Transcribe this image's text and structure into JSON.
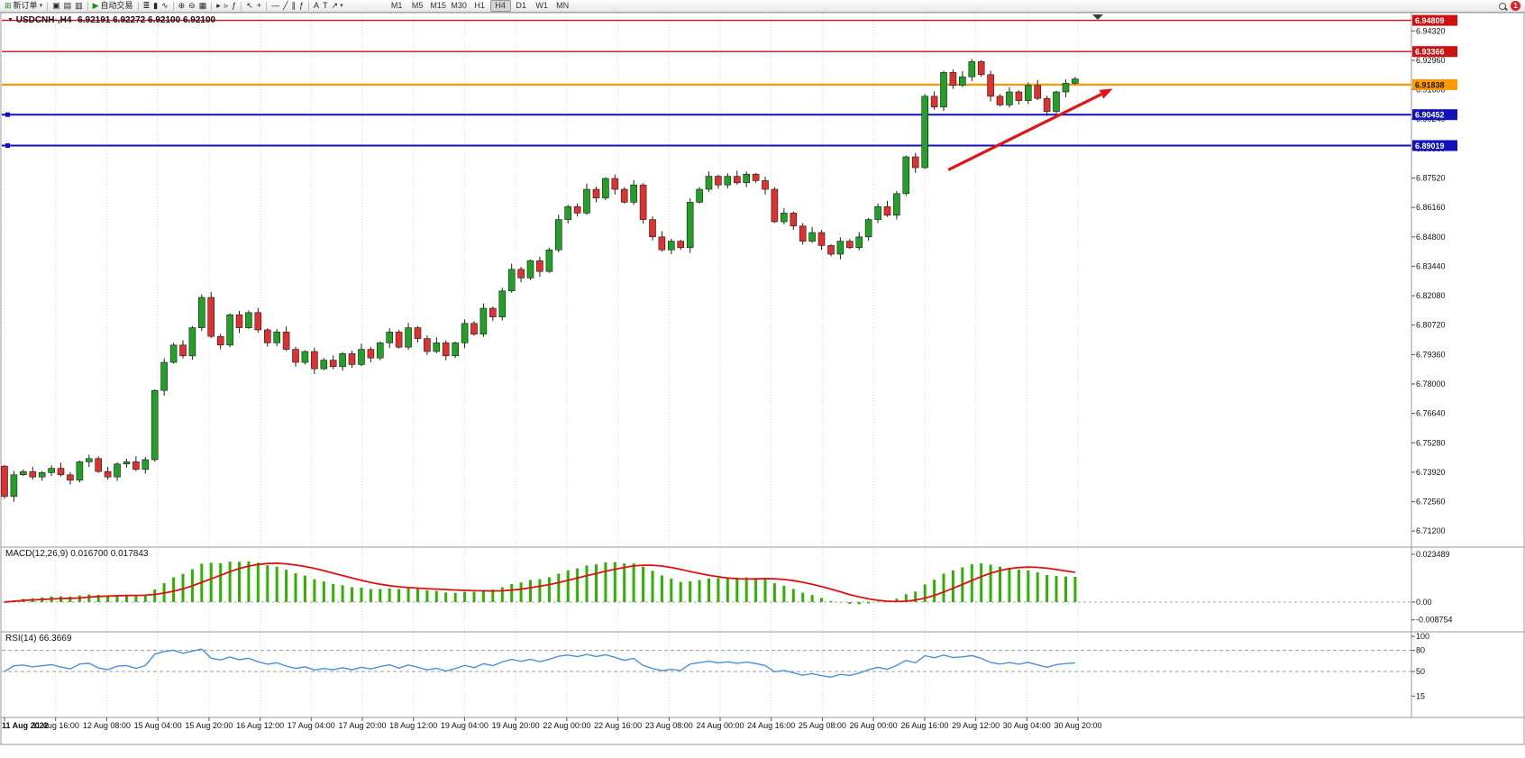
{
  "toolbar": {
    "groups": [
      {
        "items": [
          {
            "name": "new-order-button",
            "glyph": "⊞",
            "glyph_color": "#1a8a1a",
            "label": "新订单",
            "caret": true
          }
        ]
      },
      {
        "items": [
          {
            "name": "chart-window-button",
            "glyph": "▣"
          },
          {
            "name": "profile-button",
            "glyph": "▤"
          },
          {
            "name": "history-center-button",
            "glyph": "▥"
          }
        ]
      },
      {
        "items": [
          {
            "name": "autotrade-button",
            "glyph": "▶",
            "glyph_color": "#1a8a1a",
            "label": "自动交易"
          }
        ]
      },
      {
        "items": [
          {
            "name": "bar-chart-button",
            "glyph": "≣"
          },
          {
            "name": "candlestick-chart-button",
            "glyph": "▮"
          },
          {
            "name": "line-chart-button",
            "glyph": "∿"
          }
        ]
      },
      {
        "items": [
          {
            "name": "zoom-in-button",
            "glyph": "⊕"
          },
          {
            "name": "zoom-out-button",
            "glyph": "⊖"
          },
          {
            "name": "tile-windows-button",
            "glyph": "▦"
          }
        ]
      },
      {
        "items": [
          {
            "name": "auto-scroll-button",
            "glyph": "▸"
          },
          {
            "name": "chart-shift-button",
            "glyph": "▹"
          },
          {
            "name": "indicators-button",
            "glyph": "ƒ"
          }
        ]
      },
      {
        "items": [
          {
            "name": "cursor-button",
            "glyph": "↖"
          },
          {
            "name": "crosshair-button",
            "glyph": "+"
          }
        ]
      },
      {
        "items": [
          {
            "name": "horizontal-line-button",
            "glyph": "—"
          },
          {
            "name": "trendline-button",
            "glyph": "╱"
          },
          {
            "name": "equidistant-channel-button",
            "glyph": "∥"
          },
          {
            "name": "fibonacci-button",
            "glyph": "ƒ"
          }
        ]
      },
      {
        "items": [
          {
            "name": "text-button",
            "glyph": "A"
          },
          {
            "name": "text-label-button",
            "glyph": "T"
          },
          {
            "name": "arrows-button",
            "glyph": "↗",
            "caret": true
          }
        ]
      }
    ],
    "timeframes": [
      "M1",
      "M5",
      "M15",
      "M30",
      "H1",
      "H4",
      "D1",
      "W1",
      "MN"
    ],
    "active_timeframe": "H4",
    "notification_count": "1"
  },
  "chart": {
    "collapse_icon": "▼",
    "title": "USDCNH-,H4",
    "ohlc": "6.92191 6.92272 6.92100 6.92100",
    "macd_label": "MACD(12,26,9) 0.016700 0.017843",
    "rsi_label": "RSI(14) 66.3669",
    "price_axis_labels": [
      "6.94320",
      "6.92960",
      "6.91600",
      "6.90240",
      "6.88880",
      "6.87520",
      "6.86160",
      "6.84800",
      "6.83440",
      "6.82080",
      "6.80720",
      "6.79360",
      "6.78000",
      "6.76640",
      "6.75280",
      "6.73920",
      "6.72560",
      "6.71200"
    ],
    "price_badges": [
      {
        "label": "6.94809",
        "price": 6.94809,
        "bg": "#cc1111",
        "fg": "#ffffff"
      },
      {
        "label": "6.93366",
        "price": 6.93366,
        "bg": "#cc1111",
        "fg": "#ffffff"
      },
      {
        "label": "6.91838",
        "price": 6.91838,
        "bg": "#ff9900",
        "fg": "#1a1a1a"
      },
      {
        "label": "6.90452",
        "price": 6.90452,
        "bg": "#1111bb",
        "fg": "#ffffff"
      },
      {
        "label": "6.89019",
        "price": 6.89019,
        "bg": "#1111bb",
        "fg": "#ffffff"
      }
    ],
    "macd_axis_labels": [
      {
        "label": "0.023489",
        "value": 0.023489
      },
      {
        "label": "0.00",
        "value": 0
      },
      {
        "label": "-0.008754",
        "value": -0.008754
      }
    ],
    "rsi_axis_labels": [
      {
        "label": "100",
        "value": 100
      },
      {
        "label": "80",
        "value": 80
      },
      {
        "label": "50",
        "value": 50
      },
      {
        "label": "15",
        "value": 15
      }
    ],
    "time_axis_labels": [
      "11 Aug 2022",
      "11 Aug 16:00",
      "12 Aug 08:00",
      "15 Aug 04:00",
      "15 Aug 20:00",
      "16 Aug 12:00",
      "17 Aug 04:00",
      "17 Aug 20:00",
      "18 Aug 12:00",
      "19 Aug 04:00",
      "19 Aug 20:00",
      "22 Aug 00:00",
      "22 Aug 16:00",
      "23 Aug 08:00",
      "24 Aug 00:00",
      "24 Aug 16:00",
      "25 Aug 08:00",
      "26 Aug 00:00",
      "26 Aug 16:00",
      "29 Aug 12:00",
      "30 Aug 04:00",
      "30 Aug 20:00"
    ]
  },
  "chart_data": {
    "type": "candlestick",
    "symbol": "USDCNH",
    "timeframe": "H4",
    "date_range": "11 Aug 2022 - 30 Aug 2022",
    "price_range": [
      6.705,
      6.9517
    ],
    "first_open": 6.742,
    "closes": [
      6.728,
      6.738,
      6.7395,
      6.737,
      6.739,
      6.741,
      6.738,
      6.7355,
      6.744,
      6.7455,
      6.7395,
      6.737,
      6.743,
      6.744,
      6.7405,
      6.745,
      6.777,
      6.79,
      6.798,
      6.793,
      6.806,
      6.82,
      6.802,
      6.798,
      6.812,
      6.806,
      6.813,
      6.805,
      6.799,
      6.804,
      6.796,
      6.79,
      6.795,
      6.787,
      6.791,
      6.788,
      6.794,
      6.789,
      6.796,
      6.792,
      6.799,
      6.804,
      6.797,
      6.806,
      6.801,
      6.795,
      6.799,
      6.793,
      6.799,
      6.808,
      6.803,
      6.815,
      6.811,
      6.823,
      6.833,
      6.829,
      6.837,
      6.832,
      6.842,
      6.856,
      6.862,
      6.859,
      6.87,
      6.866,
      6.875,
      6.87,
      6.864,
      6.872,
      6.856,
      6.848,
      6.842,
      6.846,
      6.843,
      6.864,
      6.87,
      6.876,
      6.872,
      6.876,
      6.873,
      6.877,
      6.874,
      6.87,
      6.855,
      6.859,
      6.853,
      6.846,
      6.85,
      6.844,
      6.84,
      6.846,
      6.843,
      6.848,
      6.856,
      6.862,
      6.858,
      6.868,
      6.885,
      6.88,
      6.913,
      6.908,
      6.924,
      6.918,
      6.922,
      6.929,
      6.923,
      6.913,
      6.909,
      6.915,
      6.911,
      6.918,
      6.912,
      6.906,
      6.915,
      6.919,
      6.921
    ],
    "horizontal_levels": [
      {
        "price": 6.94809,
        "color": "#cc1111",
        "width": 1.4,
        "handles": false
      },
      {
        "price": 6.93366,
        "color": "#cc1111",
        "width": 1.4,
        "handles": false
      },
      {
        "price": 6.91838,
        "color": "#ff9900",
        "width": 2.2,
        "handles": false
      },
      {
        "price": 6.90452,
        "color": "#1111bb",
        "width": 2,
        "handles": true
      },
      {
        "price": 6.89019,
        "color": "#1111bb",
        "width": 2,
        "handles": true
      }
    ],
    "indicators": {
      "macd": {
        "fast": 12,
        "slow": 26,
        "signal": 9,
        "current_main": 0.0167,
        "current_signal": 0.017843,
        "axis_max": 0.023489,
        "axis_min": -0.008754
      },
      "rsi": {
        "period": 14,
        "current": 66.3669,
        "levels": [
          80,
          50
        ],
        "axis": [
          100,
          80,
          50,
          15
        ]
      }
    },
    "trend_arrow": {
      "bar_start": 100.5,
      "price_start": 6.879,
      "bar_end": 118,
      "price_end": 6.9165,
      "color": "#e01515"
    }
  },
  "colors": {
    "candle_up": "#21a126",
    "candle_down": "#e03131",
    "candle_outline": "#1c1c1c",
    "macd_histogram": "#2db200",
    "macd_signal": "#e01010",
    "rsi_line": "#4a90d9",
    "grid": "#d9d9d9",
    "axis_text": "#111111",
    "panel_border": "#9a9a9a"
  }
}
